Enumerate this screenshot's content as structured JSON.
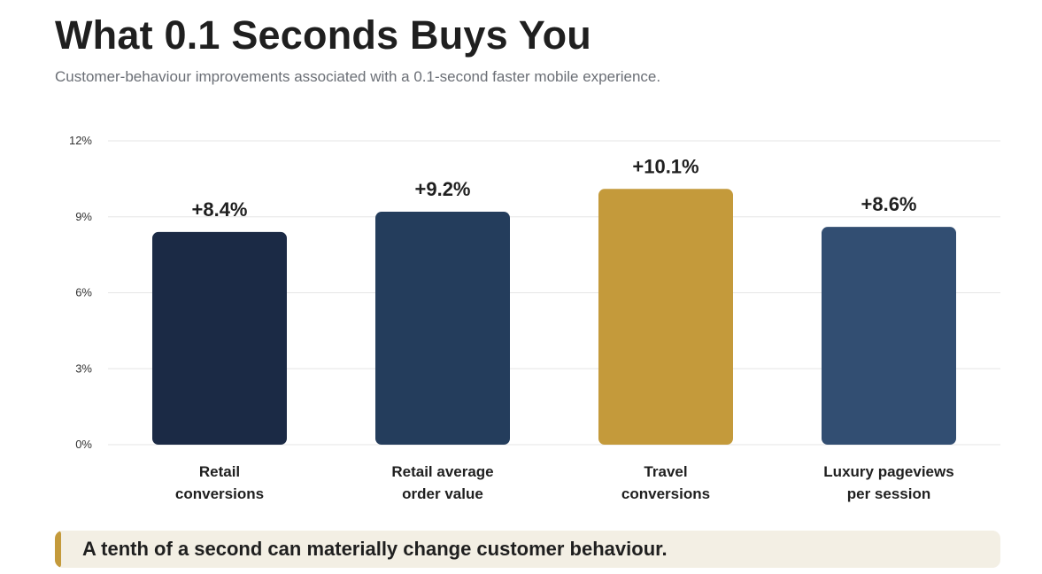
{
  "header": {
    "title": "What 0.1 Seconds Buys You",
    "subtitle": "Customer-behaviour improvements associated with a 0.1-second faster mobile experience."
  },
  "chart_data": {
    "type": "bar",
    "categories": [
      [
        "Retail",
        "conversions"
      ],
      [
        "Retail average",
        "order value"
      ],
      [
        "Travel",
        "conversions"
      ],
      [
        "Luxury pageviews",
        "per session"
      ]
    ],
    "values": [
      8.4,
      9.2,
      10.1,
      8.6
    ],
    "data_labels": [
      "+8.4%",
      "+9.2%",
      "+10.1%",
      "+8.6%"
    ],
    "bar_colors": [
      "#1b2a45",
      "#243d5c",
      "#c49a3b",
      "#324e72"
    ],
    "ylim": [
      0,
      12
    ],
    "y_ticks": [
      0,
      3,
      6,
      9,
      12
    ],
    "y_tick_labels": [
      "0%",
      "3%",
      "6%",
      "9%",
      "12%"
    ],
    "grid": true,
    "xlabel": "",
    "ylabel": ""
  },
  "takeaway": {
    "text": "A tenth of a second can materially change customer behaviour.",
    "accent_color": "#c49a3b"
  }
}
